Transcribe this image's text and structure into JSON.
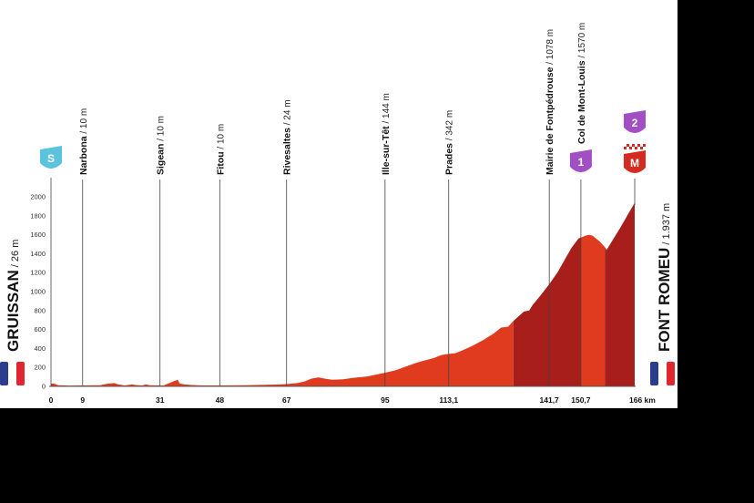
{
  "chart_data": {
    "type": "area",
    "x_unit": "km",
    "xlim": [
      0,
      166
    ],
    "ylim": [
      0,
      2000
    ],
    "yticks": [
      0,
      200,
      400,
      600,
      800,
      1000,
      1200,
      1400,
      1600,
      1800,
      2000
    ],
    "colors": {
      "profile_light": "#e03a1f",
      "profile_dark": "#a81e1a",
      "cat1": "#a34fc4",
      "cat2": "#a34fc4",
      "start": "#5bc3dd",
      "finish": "#d42a1f"
    },
    "start": {
      "name": "GRUISSAN",
      "alt": "26 m",
      "km": 0,
      "badge": "S",
      "flag": "france-flag"
    },
    "finish": {
      "name": "FONT ROMEU",
      "alt": "1.937 m",
      "km": 166,
      "badge": "M",
      "category_badge": "2",
      "flag": "france-flag"
    },
    "waypoints": [
      {
        "name": "Narbona",
        "alt": "10 m",
        "km": 9,
        "label": "9"
      },
      {
        "name": "Sigean",
        "alt": "10 m",
        "km": 31,
        "label": "31"
      },
      {
        "name": "Fitou",
        "alt": "10 m",
        "km": 48,
        "label": "48"
      },
      {
        "name": "Rivesaltes",
        "alt": "24 m",
        "km": 67,
        "label": "67"
      },
      {
        "name": "Ille-sur-Têt",
        "alt": "144 m",
        "km": 95,
        "label": "95"
      },
      {
        "name": "Prades",
        "alt": "342 m",
        "km": 113.1,
        "label": "113,1"
      },
      {
        "name": "Mairie de Fontpédrouse",
        "alt": "1078 m",
        "km": 141.7,
        "label": "141,7"
      },
      {
        "name": "Col de Mont-Louis",
        "alt": "1570 m",
        "km": 150.7,
        "label": "150,7",
        "badge": "1"
      }
    ],
    "start_km_label": "0",
    "finish_km_label": "166 km",
    "profile": [
      [
        0,
        30
      ],
      [
        1,
        28
      ],
      [
        2,
        12
      ],
      [
        5,
        8
      ],
      [
        9,
        10
      ],
      [
        14,
        12
      ],
      [
        16,
        28
      ],
      [
        18,
        35
      ],
      [
        19,
        22
      ],
      [
        21,
        10
      ],
      [
        23,
        20
      ],
      [
        24,
        14
      ],
      [
        26,
        10
      ],
      [
        27,
        20
      ],
      [
        28,
        12
      ],
      [
        30,
        10
      ],
      [
        31,
        10
      ],
      [
        32,
        8
      ],
      [
        33,
        25
      ],
      [
        34,
        40
      ],
      [
        35,
        55
      ],
      [
        36,
        70
      ],
      [
        36.6,
        30
      ],
      [
        38,
        20
      ],
      [
        40,
        14
      ],
      [
        43,
        10
      ],
      [
        48,
        10
      ],
      [
        55,
        12
      ],
      [
        60,
        16
      ],
      [
        65,
        20
      ],
      [
        67,
        24
      ],
      [
        70,
        35
      ],
      [
        72,
        50
      ],
      [
        74,
        80
      ],
      [
        76,
        95
      ],
      [
        78,
        80
      ],
      [
        80,
        70
      ],
      [
        83,
        75
      ],
      [
        86,
        90
      ],
      [
        90,
        105
      ],
      [
        95,
        144
      ],
      [
        98,
        170
      ],
      [
        101,
        210
      ],
      [
        104,
        250
      ],
      [
        106,
        270
      ],
      [
        109,
        300
      ],
      [
        111,
        330
      ],
      [
        113.1,
        342
      ],
      [
        115,
        350
      ],
      [
        117,
        380
      ],
      [
        120,
        430
      ],
      [
        123,
        490
      ],
      [
        126,
        560
      ],
      [
        128,
        620
      ],
      [
        130,
        630
      ],
      [
        131.5,
        690
      ],
      [
        133,
        740
      ],
      [
        134.5,
        790
      ],
      [
        136,
        800
      ],
      [
        137,
        860
      ],
      [
        139,
        950
      ],
      [
        141.7,
        1078
      ],
      [
        144,
        1200
      ],
      [
        146,
        1330
      ],
      [
        148,
        1460
      ],
      [
        150,
        1560
      ],
      [
        150.7,
        1570
      ],
      [
        152,
        1590
      ],
      [
        153,
        1600
      ],
      [
        154,
        1590
      ],
      [
        156,
        1530
      ],
      [
        157.5,
        1470
      ],
      [
        158,
        1440
      ],
      [
        160,
        1560
      ],
      [
        162,
        1680
      ],
      [
        164,
        1810
      ],
      [
        166,
        1937
      ]
    ],
    "dark_section_start_km": 131.5,
    "dark_section_2_start_km": 157.5
  }
}
